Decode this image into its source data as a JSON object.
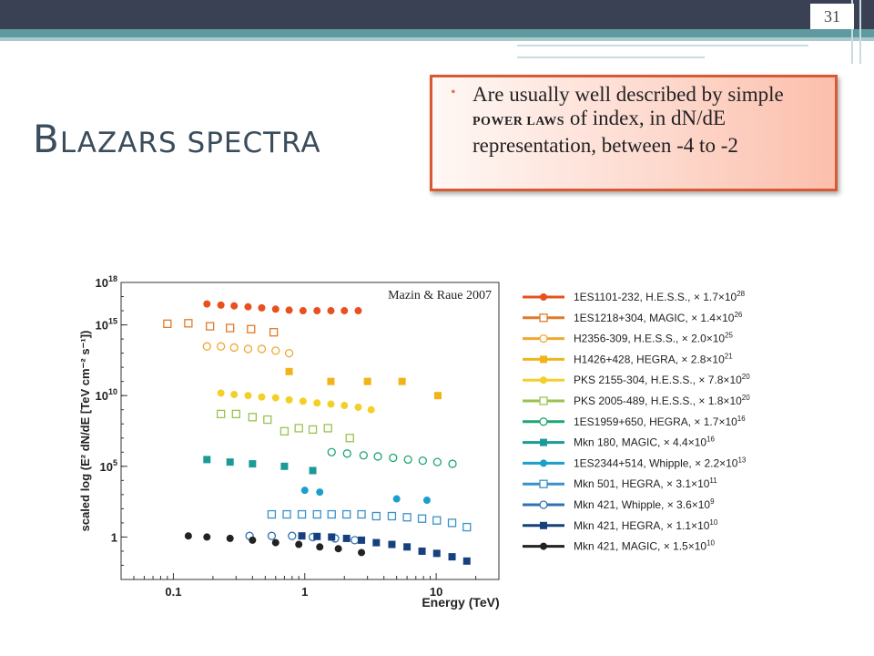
{
  "slide": {
    "number": "31",
    "title_first": "B",
    "title_rest": "LAZARS SPECTRA"
  },
  "callout": {
    "bullet": "•",
    "text_before": "Are usually well described by simple ",
    "text_emph": "POWER LAWS",
    "text_after": " of index, in dN/dE representation, between -4 to -2"
  },
  "figure_credit": "Mazin & Raue 2007",
  "chart_data": {
    "type": "scatter",
    "xlabel": "Energy (TeV)",
    "ylabel": "scaled log (E² dN/dE [TeV cm⁻² s⁻¹])",
    "x_scale": "log",
    "y_scale": "log",
    "xlim": [
      0.04,
      30
    ],
    "ylim": [
      0.001,
      1e+18
    ],
    "x_ticks": [
      "0.1",
      "1",
      "10"
    ],
    "y_ticks": [
      "1",
      "10^5",
      "10^10",
      "10^15",
      "10^18"
    ],
    "legend_position": "right",
    "series": [
      {
        "name": "1ES1101-232, H.E.S.S., × 1.7×10^28",
        "color": "#e8501e",
        "marker": "filled-circle",
        "x": [
          0.18,
          0.23,
          0.29,
          0.37,
          0.47,
          0.6,
          0.76,
          0.97,
          1.24,
          1.58,
          2.0,
          2.55
        ],
        "y": [
          3e+16,
          2.5e+16,
          2.2e+16,
          1.9e+16,
          1.6e+16,
          1.3e+16,
          1.1e+16,
          1e+16,
          1e+16,
          1e+16,
          1e+16,
          1e+16
        ]
      },
      {
        "name": "1ES1218+304, MAGIC, × 1.4×10^26",
        "color": "#e07a2a",
        "marker": "open-square",
        "x": [
          0.09,
          0.13,
          0.19,
          0.27,
          0.39,
          0.58
        ],
        "y": [
          1200000000000000.0,
          1300000000000000.0,
          800000000000000.0,
          600000000000000.0,
          500000000000000.0,
          300000000000000.0
        ]
      },
      {
        "name": "H2356-309, H.E.S.S., × 2.0×10^25",
        "color": "#f0a830",
        "marker": "open-circle",
        "x": [
          0.18,
          0.23,
          0.29,
          0.37,
          0.47,
          0.6,
          0.76
        ],
        "y": [
          30000000000000.0,
          30000000000000.0,
          25000000000000.0,
          20000000000000.0,
          20000000000000.0,
          15000000000000.0,
          10000000000000.0
        ]
      },
      {
        "name": "H1426+428, HEGRA, × 2.8×10^21",
        "color": "#f0b419",
        "marker": "filled-square",
        "x": [
          0.76,
          1.58,
          3.0,
          5.5,
          10.3
        ],
        "y": [
          500000000000.0,
          100000000000.0,
          100000000000.0,
          100000000000.0,
          10000000000.0
        ]
      },
      {
        "name": "PKS 2155-304, H.E.S.S., × 7.8×10^20",
        "color": "#f3d027",
        "marker": "filled-circle",
        "x": [
          0.23,
          0.29,
          0.37,
          0.47,
          0.6,
          0.76,
          0.97,
          1.24,
          1.58,
          2.0,
          2.55,
          3.2
        ],
        "y": [
          15000000000.0,
          12000000000.0,
          10000000000.0,
          8000000000.0,
          7000000000.0,
          5000000000.0,
          4000000000.0,
          3000000000.0,
          2500000000.0,
          2000000000.0,
          1500000000.0,
          1000000000.0
        ]
      },
      {
        "name": "PKS 2005-489, H.E.S.S., × 1.8×10^20",
        "color": "#9ac24f",
        "marker": "open-square",
        "x": [
          0.23,
          0.3,
          0.4,
          0.52,
          0.7,
          0.9,
          1.15,
          1.5,
          2.2
        ],
        "y": [
          500000000.0,
          500000000.0,
          300000000.0,
          200000000.0,
          30000000.0,
          50000000.0,
          40000000.0,
          50000000.0,
          10000000.0
        ]
      },
      {
        "name": "1ES1959+650, HEGRA, × 1.7×10^16",
        "color": "#1fa56e",
        "marker": "open-circle",
        "x": [
          1.6,
          2.1,
          2.8,
          3.6,
          4.7,
          6.1,
          7.9,
          10.2,
          13.3
        ],
        "y": [
          1000000.0,
          800000.0,
          600000.0,
          500000.0,
          400000.0,
          300000.0,
          250000.0,
          200000.0,
          150000.0
        ]
      },
      {
        "name": "Mkn 180, MAGIC, × 4.4×10^16",
        "color": "#1a9a98",
        "marker": "filled-square",
        "x": [
          0.18,
          0.27,
          0.4,
          0.7,
          1.15
        ],
        "y": [
          300000.0,
          200000.0,
          150000.0,
          100000.0,
          50000.0
        ]
      },
      {
        "name": "1ES2344+514, Whipple, × 2.2×10^13",
        "color": "#1a9fcb",
        "marker": "filled-circle",
        "x": [
          1.0,
          1.3,
          5.0,
          8.5
        ],
        "y": [
          2000.0,
          1500.0,
          500.0,
          400.0
        ]
      },
      {
        "name": "Mkn 501, HEGRA, × 3.1×10^11",
        "color": "#3a91c9",
        "marker": "open-square",
        "x": [
          0.56,
          0.73,
          0.95,
          1.24,
          1.6,
          2.08,
          2.7,
          3.5,
          4.6,
          6.0,
          7.8,
          10.1,
          13.2,
          17.1
        ],
        "y": [
          40,
          40,
          40,
          40,
          40,
          40,
          40,
          30,
          30,
          25,
          20,
          15,
          10,
          5
        ]
      },
      {
        "name": "Mkn 421, Whipple, × 3.6×10^9",
        "color": "#2f72b5",
        "marker": "open-circle",
        "x": [
          0.38,
          0.56,
          0.8,
          1.15,
          1.7,
          2.4
        ],
        "y": [
          1.2,
          1.2,
          1.2,
          1.0,
          0.8,
          0.6
        ]
      },
      {
        "name": "Mkn 421, HEGRA, × 1.1×10^10",
        "color": "#17407e",
        "marker": "filled-square",
        "x": [
          0.95,
          1.24,
          1.6,
          2.08,
          2.7,
          3.5,
          4.6,
          6.0,
          7.8,
          10.1,
          13.2,
          17.1
        ],
        "y": [
          1.2,
          1.1,
          1.0,
          0.8,
          0.6,
          0.4,
          0.3,
          0.2,
          0.1,
          0.07,
          0.04,
          0.02
        ]
      },
      {
        "name": "Mkn 421, MAGIC, × 1.5×10^10",
        "color": "#222222",
        "marker": "filled-circle",
        "x": [
          0.13,
          0.18,
          0.27,
          0.4,
          0.6,
          0.9,
          1.3,
          1.8,
          2.7
        ],
        "y": [
          1.2,
          1.0,
          0.8,
          0.6,
          0.4,
          0.3,
          0.2,
          0.15,
          0.08
        ]
      }
    ]
  }
}
